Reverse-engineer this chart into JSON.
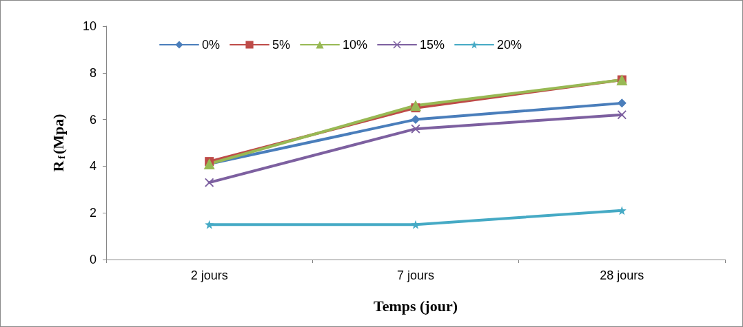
{
  "chart_data": {
    "type": "line",
    "xlabel": "Temps (jour)",
    "ylabel": "R$_{f}$(Mpa)",
    "categories": [
      "2 jours",
      "7 jours",
      "28 jours"
    ],
    "ylim": [
      0,
      10
    ],
    "yticks": [
      0,
      2,
      4,
      6,
      8,
      10
    ],
    "grid": false,
    "legend": "top",
    "series": [
      {
        "name": "0%",
        "color": "#4a7ebb",
        "marker": "diamond",
        "values": [
          4.1,
          6.0,
          6.7
        ]
      },
      {
        "name": "5%",
        "color": "#be4b48",
        "marker": "square",
        "values": [
          4.2,
          6.5,
          7.7
        ]
      },
      {
        "name": "10%",
        "color": "#98b954",
        "marker": "triangle",
        "values": [
          4.1,
          6.6,
          7.7
        ]
      },
      {
        "name": "15%",
        "color": "#7d60a0",
        "marker": "cross",
        "values": [
          3.3,
          5.6,
          6.2
        ]
      },
      {
        "name": "20%",
        "color": "#46aac5",
        "marker": "star",
        "values": [
          1.5,
          1.5,
          2.1
        ]
      }
    ]
  }
}
